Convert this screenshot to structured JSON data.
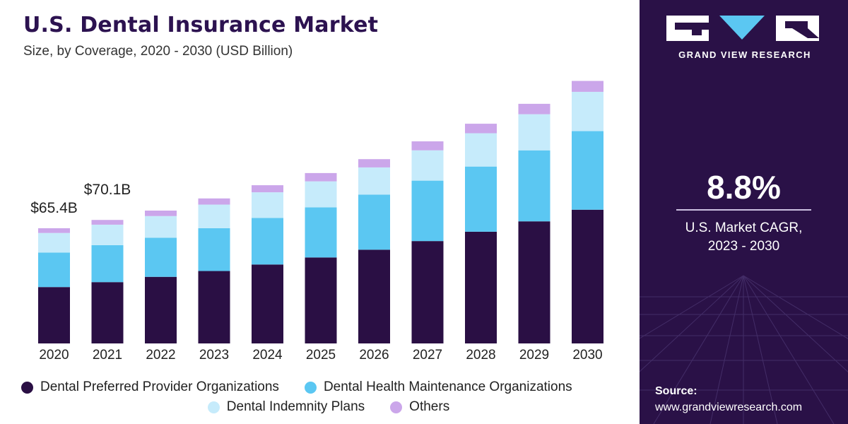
{
  "chart_data": {
    "type": "bar",
    "stacked": true,
    "title": "U.S. Dental Insurance Market",
    "subtitle": "Size, by Coverage, 2020 - 2030 (USD Billion)",
    "categories": [
      "2020",
      "2021",
      "2022",
      "2023",
      "2024",
      "2025",
      "2026",
      "2027",
      "2028",
      "2029",
      "2030"
    ],
    "series": [
      {
        "name": "Dental Preferred Provider Organizations",
        "color": "#2a0f44",
        "values": [
          32.0,
          34.8,
          37.8,
          41.1,
          44.8,
          48.8,
          53.2,
          58.1,
          63.4,
          69.3,
          75.9
        ]
      },
      {
        "name": "Dental Health Maintenance Organizations",
        "color": "#5bc7f2",
        "values": [
          19.6,
          21.0,
          22.2,
          24.3,
          26.4,
          28.4,
          31.3,
          34.3,
          37.0,
          40.3,
          44.6
        ]
      },
      {
        "name": "Dental Indemnity Plans",
        "color": "#c6ebfb",
        "values": [
          11.1,
          11.6,
          12.3,
          13.4,
          14.6,
          14.8,
          15.4,
          17.2,
          18.9,
          20.5,
          22.3
        ]
      },
      {
        "name": "Others",
        "color": "#cba6ea",
        "values": [
          2.7,
          2.7,
          3.1,
          3.5,
          4.0,
          4.7,
          4.7,
          5.1,
          5.4,
          5.9,
          6.2
        ]
      }
    ],
    "totals": [
      65.4,
      70.1,
      75.4,
      82.3,
      89.8,
      96.7,
      104.6,
      114.7,
      124.7,
      136.0,
      149.0
    ],
    "data_labels": [
      {
        "category": "2020",
        "text": "$65.4B"
      },
      {
        "category": "2021",
        "text": "$70.1B"
      }
    ],
    "ylim": [
      0,
      150
    ],
    "grid": false,
    "legend_position": "bottom"
  },
  "panel": {
    "brand": "GRAND VIEW RESEARCH",
    "cagr_value": "8.8%",
    "cagr_label_line1": "U.S. Market CAGR,",
    "cagr_label_line2": "2023 - 2030",
    "source_label": "Source:",
    "source_url": "www.grandviewresearch.com"
  }
}
